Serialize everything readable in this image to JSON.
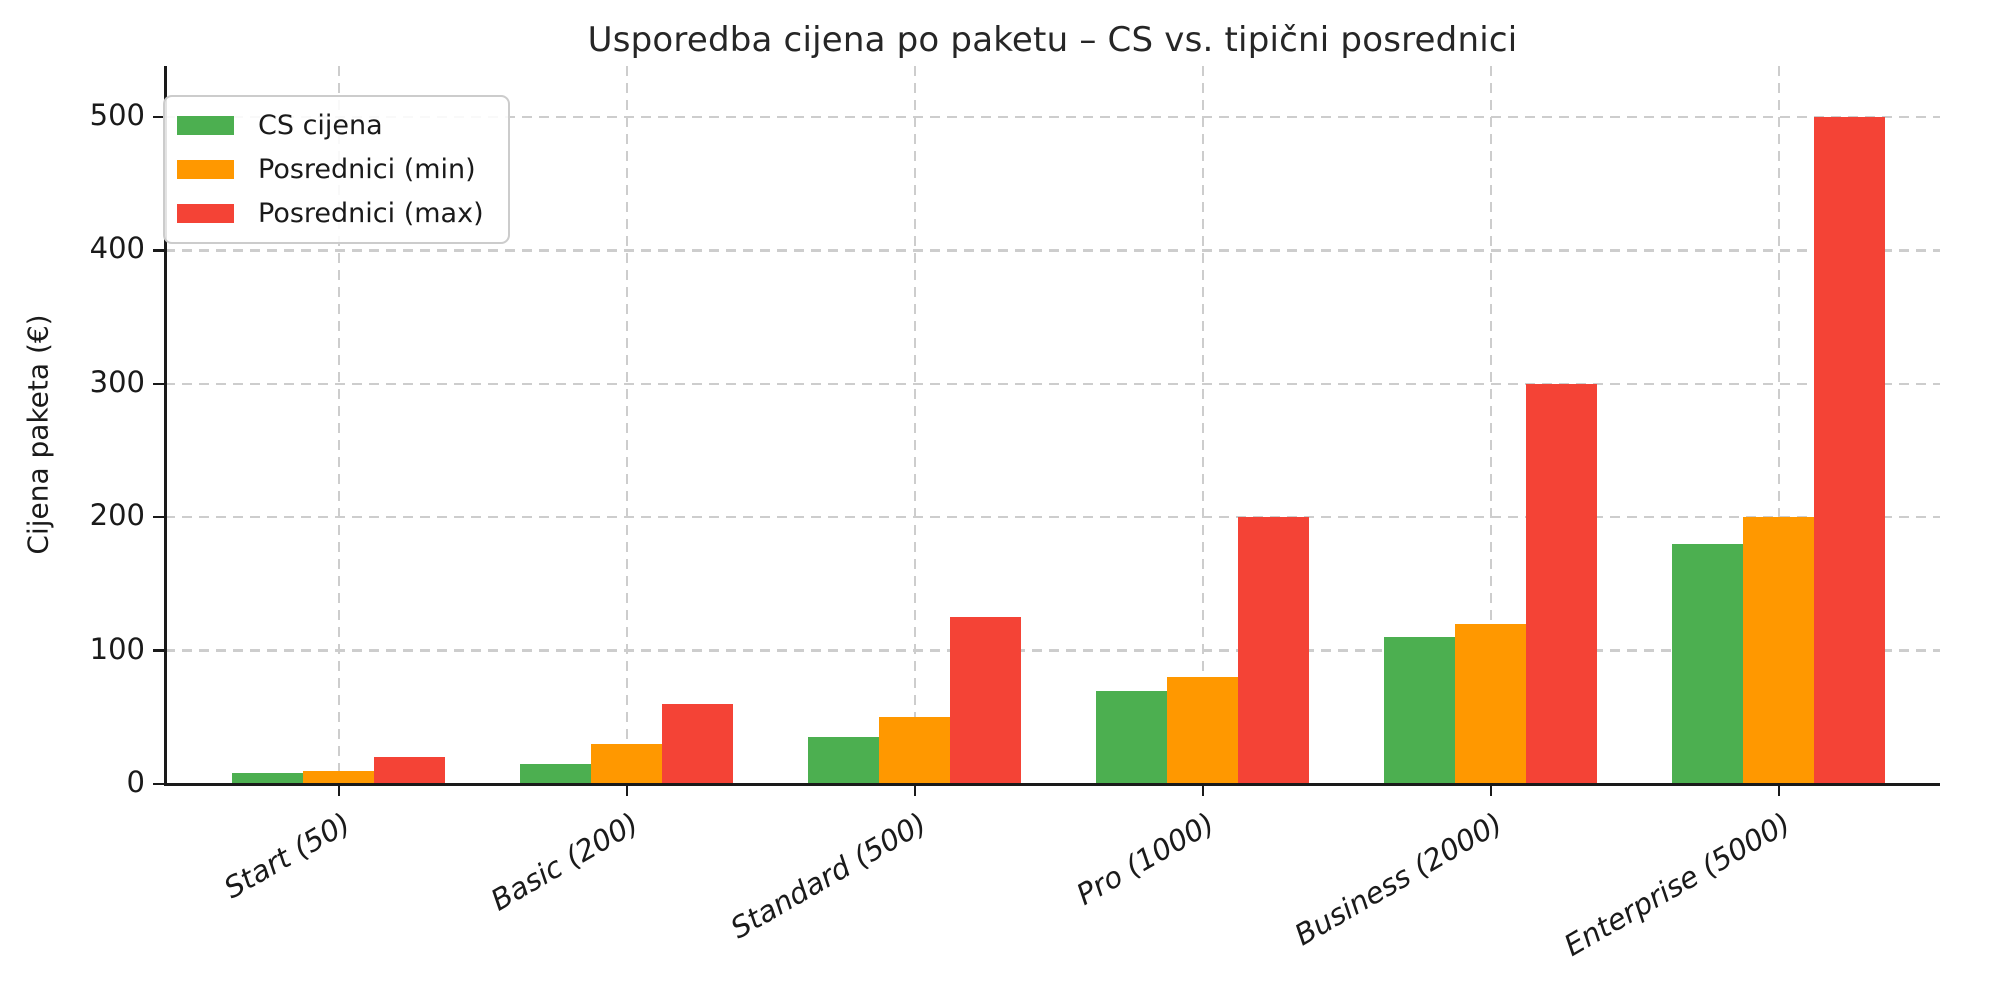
{
  "chart_data": {
    "type": "bar",
    "title": "Usporedba cijena po paketu – CS vs. tipični posrednici",
    "xlabel": "",
    "ylabel": "Cijena paketa (€)",
    "categories": [
      "Start (50)",
      "Basic (200)",
      "Standard (500)",
      "Pro (1000)",
      "Business (2000)",
      "Enterprise (5000)"
    ],
    "series": [
      {
        "name": "CS cijena",
        "color": "#4CAF50",
        "values": [
          8,
          15,
          35,
          70,
          110,
          180
        ]
      },
      {
        "name": "Posrednici (min)",
        "color": "#FF9800",
        "values": [
          10,
          30,
          50,
          80,
          120,
          200
        ]
      },
      {
        "name": "Posrednici (max)",
        "color": "#F44336",
        "values": [
          20,
          60,
          125,
          200,
          300,
          500
        ]
      }
    ],
    "yticks": [
      0,
      100,
      200,
      300,
      400,
      500
    ],
    "ylim": [
      0,
      537
    ],
    "grid": true,
    "legend_position": "upper-left",
    "colors": {
      "grid": "#cdcdcd",
      "axis": "#1a1a1a",
      "text": "#262626",
      "background": "#ffffff"
    }
  }
}
